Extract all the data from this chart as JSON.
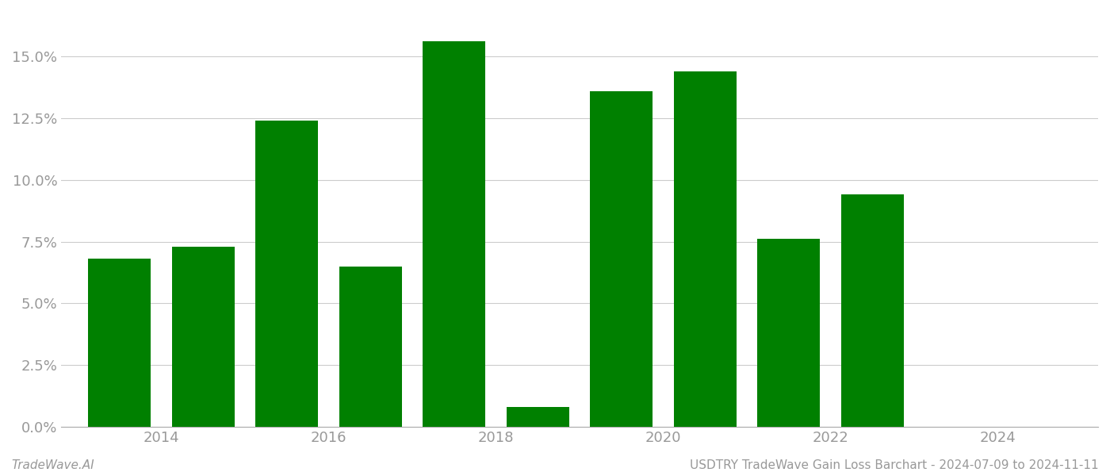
{
  "years": [
    2013,
    2014,
    2015,
    2016,
    2017,
    2018,
    2019,
    2020,
    2021,
    2022,
    2023
  ],
  "values": [
    0.068,
    0.073,
    0.124,
    0.065,
    0.156,
    0.008,
    0.136,
    0.144,
    0.076,
    0.094,
    0.0
  ],
  "bar_color": "#008000",
  "background_color": "#ffffff",
  "grid_color": "#cccccc",
  "xtick_labels": [
    "2014",
    "2016",
    "2018",
    "2020",
    "2022",
    "2024"
  ],
  "xtick_positions": [
    2013.5,
    2015.5,
    2017.5,
    2019.5,
    2021.5,
    2023.5
  ],
  "ytick_values": [
    0.0,
    0.025,
    0.05,
    0.075,
    0.1,
    0.125,
    0.15
  ],
  "ylim": [
    0,
    0.168
  ],
  "xlim": [
    2012.3,
    2024.7
  ],
  "footer_left": "TradeWave.AI",
  "footer_right": "USDTRY TradeWave Gain Loss Barchart - 2024-07-09 to 2024-11-11",
  "bar_width": 0.75,
  "tick_label_color": "#999999",
  "footer_color": "#999999",
  "footer_fontsize": 11
}
